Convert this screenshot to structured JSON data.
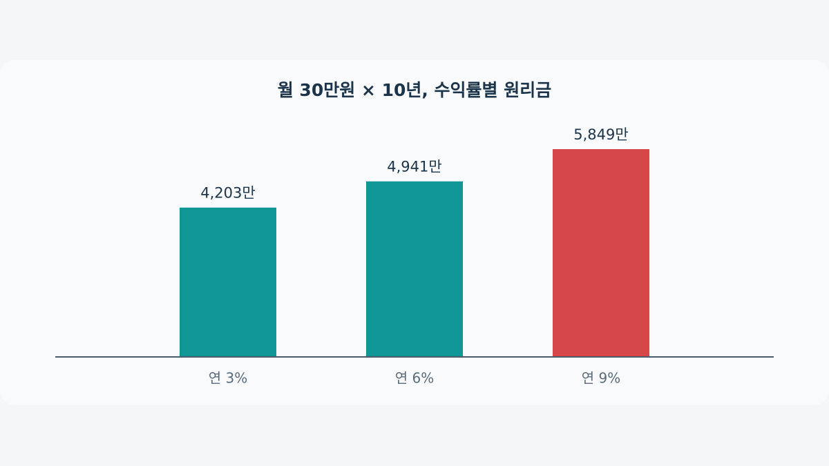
{
  "chart_data": {
    "type": "bar",
    "title": "월 30만원 × 10년, 수익률별 원리금",
    "categories": [
      "연 3%",
      "연 6%",
      "연 9%"
    ],
    "values": [
      4203,
      4941,
      5849
    ],
    "value_labels": [
      "4,203만",
      "4,941만",
      "5,849만"
    ],
    "colors": [
      "#109694",
      "#109694",
      "#d64749"
    ]
  }
}
